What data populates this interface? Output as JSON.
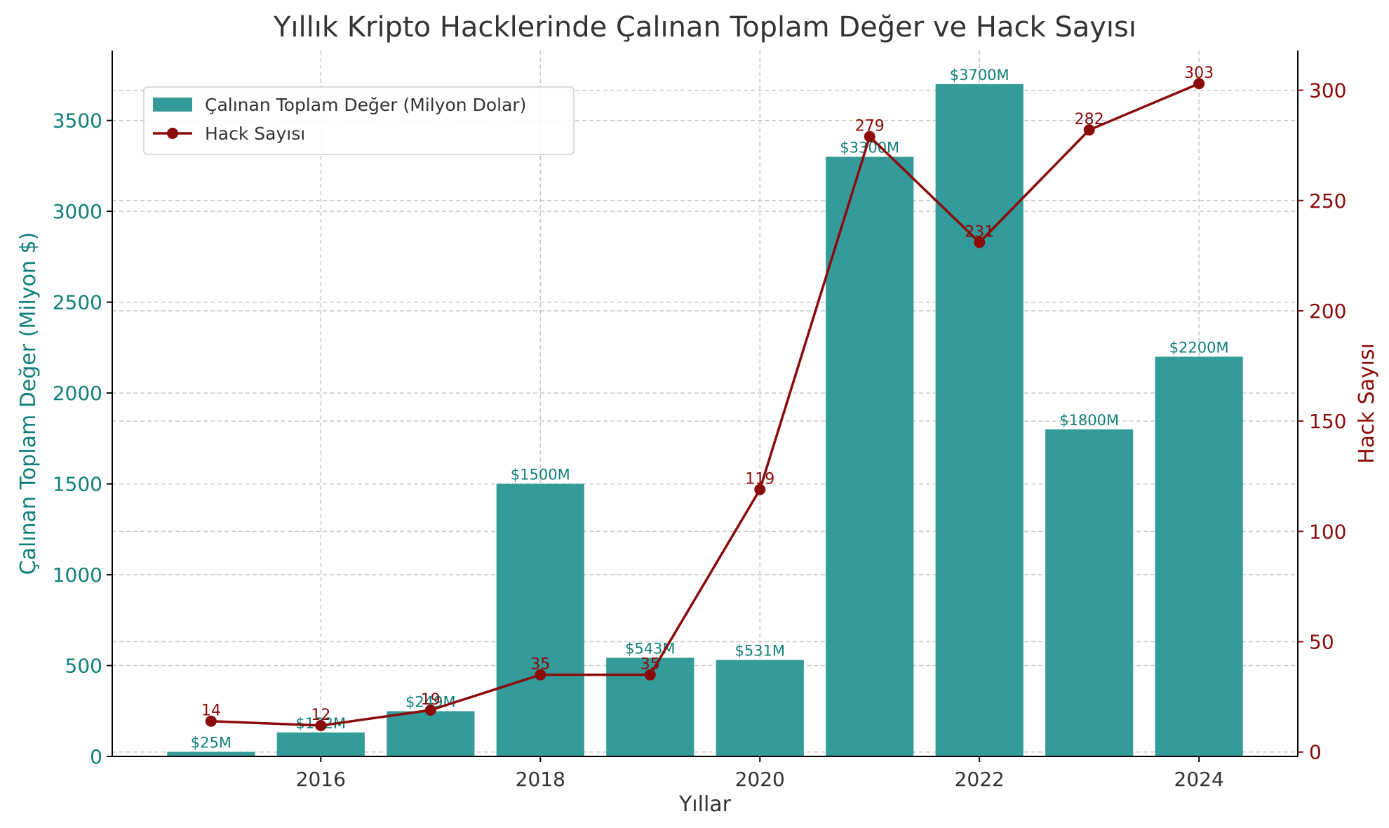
{
  "colors": {
    "bars": "#339b99",
    "bar_label": "#0f7f7a",
    "line": "#8b0a0a",
    "axis_left": "#0f7f7a",
    "axis_right": "#8b0a0a",
    "text": "#333333",
    "spine": "#000000"
  },
  "chart_data": {
    "type": "bar",
    "title": "Yıllık Kripto Hacklerinde Çalınan Toplam Değer ve Hack Sayısı",
    "xlabel": "Yıllar",
    "ylabel": "Çalınan Toplam Değer (Milyon $)",
    "ylabel_right": "Hack Sayısı",
    "x": [
      2015,
      2016,
      2017,
      2018,
      2019,
      2020,
      2021,
      2022,
      2023,
      2024
    ],
    "xticks": [
      2016,
      2018,
      2020,
      2022,
      2024
    ],
    "xticklabels": [
      "2016",
      "2018",
      "2020",
      "2022",
      "2024"
    ],
    "xlim": [
      2014.1,
      2024.9
    ],
    "ylim": [
      0,
      3885
    ],
    "yticks": [
      0,
      500,
      1000,
      1500,
      2000,
      2500,
      3000,
      3500
    ],
    "yticklabels": [
      "0",
      "500",
      "1000",
      "1500",
      "2000",
      "2500",
      "3000",
      "3500"
    ],
    "ylim_right": [
      -2,
      318
    ],
    "yticks_right": [
      0,
      50,
      100,
      150,
      200,
      250,
      300
    ],
    "yticklabels_right": [
      "0",
      "50",
      "100",
      "150",
      "200",
      "250",
      "300"
    ],
    "grid": true,
    "legend_position": "top-left",
    "series": [
      {
        "name": "Çalınan Toplam Değer (Milyon Dolar)",
        "type": "bar",
        "axis": "left",
        "values": [
          25,
          132,
          249,
          1500,
          543,
          531,
          3300,
          3700,
          1800,
          2200
        ],
        "labels": [
          "$25M",
          "$132M",
          "$249M",
          "$1500M",
          "$543M",
          "$531M",
          "$3300M",
          "$3700M",
          "$1800M",
          "$2200M"
        ]
      },
      {
        "name": "Hack Sayısı",
        "type": "line",
        "axis": "right",
        "values": [
          14,
          12,
          19,
          35,
          35,
          119,
          279,
          231,
          282,
          303
        ],
        "labels": [
          "14",
          "12",
          "19",
          "35",
          "35",
          "119",
          "279",
          "231",
          "282",
          "303"
        ]
      }
    ]
  }
}
